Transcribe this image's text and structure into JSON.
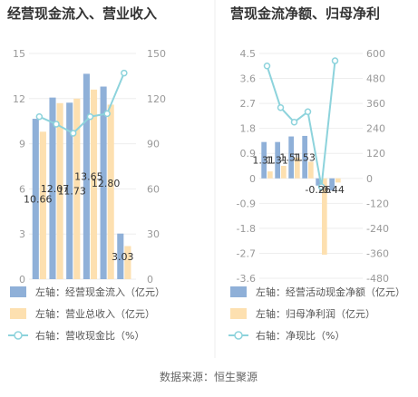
{
  "chart_data": [
    {
      "type": "bar",
      "title": "经营现金流入、营业收入",
      "categories": [
        "",
        "",
        "",
        "",
        "",
        ""
      ],
      "series": [
        {
          "name": "左轴：经营现金流入（亿元）",
          "axis": "left",
          "type": "bar",
          "color": "#8fb0d8",
          "values": [
            10.66,
            12.07,
            11.73,
            13.65,
            12.8,
            3.03
          ],
          "labels": [
            "10.66",
            "12.07",
            "11.73",
            "13.65",
            "12.80",
            "3.03"
          ]
        },
        {
          "name": "左轴：营业总收入（亿元）",
          "axis": "left",
          "type": "bar",
          "color": "#fde0b0",
          "values": [
            9.8,
            11.7,
            12.0,
            12.6,
            11.6,
            2.2
          ]
        },
        {
          "name": "右轴：营收现金比（%）",
          "axis": "right",
          "type": "line",
          "color": "#8dd3dc",
          "values": [
            108,
            103,
            97,
            108,
            110,
            137
          ]
        }
      ],
      "y_left": {
        "min": 0,
        "max": 15,
        "ticks": [
          "0",
          "3",
          "6",
          "9",
          "12",
          "15"
        ]
      },
      "y_right": {
        "min": 0,
        "max": 150,
        "ticks": [
          "0",
          "30",
          "60",
          "90",
          "120",
          "150"
        ]
      },
      "grid": true,
      "legend_position": "bottom"
    },
    {
      "type": "bar",
      "title": "营现金流净额、归母净利",
      "categories": [
        "",
        "",
        "",
        "",
        "",
        ""
      ],
      "series": [
        {
          "name": "左轴：经营活动现金净额（亿元）",
          "axis": "left",
          "type": "bar",
          "color": "#8fb0d8",
          "values": [
            1.31,
            1.31,
            1.51,
            1.53,
            -0.26,
            -0.44
          ],
          "labels": [
            "1.31",
            "1.31",
            "1.51",
            "1.53",
            "-0.26",
            "-0.44"
          ]
        },
        {
          "name": "左轴：归母净利润（亿元）",
          "axis": "left",
          "type": "bar",
          "color": "#fde0b0",
          "values": [
            0.25,
            0.45,
            0.75,
            0.6,
            -2.75,
            -0.15
          ]
        },
        {
          "name": "右轴：净现比（%）",
          "axis": "right",
          "type": "line",
          "color": "#8dd3dc",
          "values": [
            540,
            340,
            270,
            320,
            -40,
            565
          ]
        }
      ],
      "y_left": {
        "min": -3.6,
        "max": 4.5,
        "ticks": [
          "-3.6",
          "-2.7",
          "-1.8",
          "-0.9",
          "0",
          "0.9",
          "1.8",
          "2.7",
          "3.6",
          "4.5"
        ]
      },
      "y_right": {
        "min": -480,
        "max": 600,
        "ticks": [
          "-480",
          "-360",
          "-240",
          "-120",
          "0",
          "120",
          "240",
          "360",
          "480",
          "600"
        ]
      },
      "grid": true,
      "legend_position": "bottom"
    }
  ],
  "footer": {
    "source": "数据来源：恒生聚源"
  }
}
